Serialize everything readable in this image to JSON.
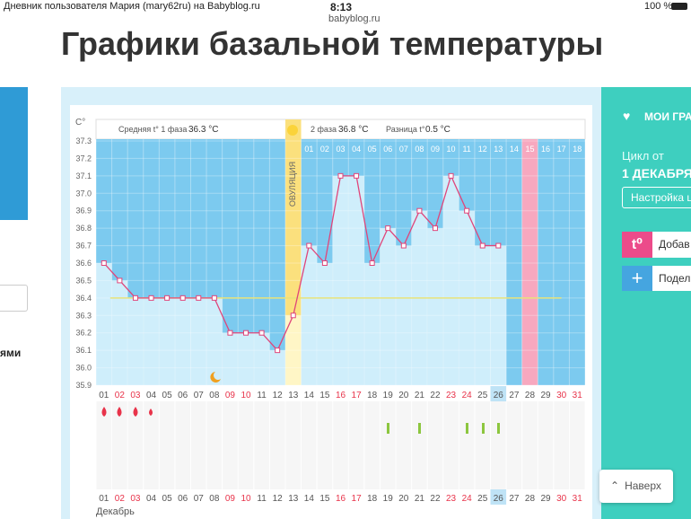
{
  "status_bar": {
    "tab_title": "Дневник пользователя Мария (mary62ru) на Babyblog.ru",
    "time": "8:13",
    "url": "babyblog.ru",
    "battery": "100 %"
  },
  "page": {
    "title": "Графики базальной температуры",
    "left_text": "ями"
  },
  "sidebar": {
    "heading": "МОИ ГРАФ",
    "cycle_label": "Цикл от",
    "cycle_date": "1 ДЕКАБРЯ",
    "settings_button": "Настройка ц",
    "add_icon": "t⁰",
    "add_button": "Добав",
    "share_button": "Подел",
    "up_button": "Наверх"
  },
  "chart_header": {
    "phase1_label": "Средняя t° 1 фаза",
    "phase1_value": "36.3 °C",
    "phase2_label": "2 фаза",
    "phase2_value": "36.8 °C",
    "diff_label": "Разница t°",
    "diff_value": "0.5 °C",
    "ovulation_label": "ОВУЛЯЦИЯ",
    "month": "Декабрь"
  },
  "chart_data": {
    "type": "line",
    "y_unit_label": "C°",
    "categories": [
      "01",
      "02",
      "03",
      "04",
      "05",
      "06",
      "07",
      "08",
      "09",
      "10",
      "11",
      "12",
      "13",
      "14",
      "15",
      "16",
      "17",
      "18",
      "19",
      "20",
      "21",
      "22",
      "23",
      "24",
      "25",
      "26",
      "27",
      "28",
      "29",
      "30",
      "31"
    ],
    "x_label_colors": [
      "#555",
      "#e8334a",
      "#e8334a",
      "#555",
      "#555",
      "#555",
      "#555",
      "#555",
      "#e8334a",
      "#e8334a",
      "#555",
      "#555",
      "#555",
      "#555",
      "#555",
      "#e8334a",
      "#e8334a",
      "#555",
      "#555",
      "#555",
      "#555",
      "#555",
      "#e8334a",
      "#e8334a",
      "#555",
      "#555",
      "#555",
      "#555",
      "#555",
      "#e8334a",
      "#e8334a"
    ],
    "phase2_days": [
      "01",
      "02",
      "03",
      "04",
      "05",
      "06",
      "07",
      "08",
      "09",
      "10",
      "11",
      "12",
      "13",
      "14",
      "15",
      "16",
      "17",
      "18"
    ],
    "values": [
      36.6,
      36.5,
      36.4,
      36.4,
      36.4,
      36.4,
      36.4,
      36.4,
      36.2,
      36.2,
      36.2,
      36.1,
      36.3,
      36.7,
      36.6,
      37.1,
      37.1,
      36.6,
      36.8,
      36.7,
      36.9,
      36.8,
      37.1,
      36.9,
      36.7,
      36.7,
      null,
      null,
      null,
      null,
      null
    ],
    "color": "#e0457a",
    "cover_line": 36.4,
    "ylim": [
      35.9,
      37.3
    ],
    "yticks": [
      35.9,
      {
        "value": 36,
        "label": "36.0"
      },
      36.1,
      36.2,
      36.3,
      36.4,
      36.5,
      36.6,
      36.7,
      36.8,
      36.9,
      {
        "value": 37,
        "label": "37.0"
      },
      37.1,
      37.2,
      37.3
    ]
  }
}
